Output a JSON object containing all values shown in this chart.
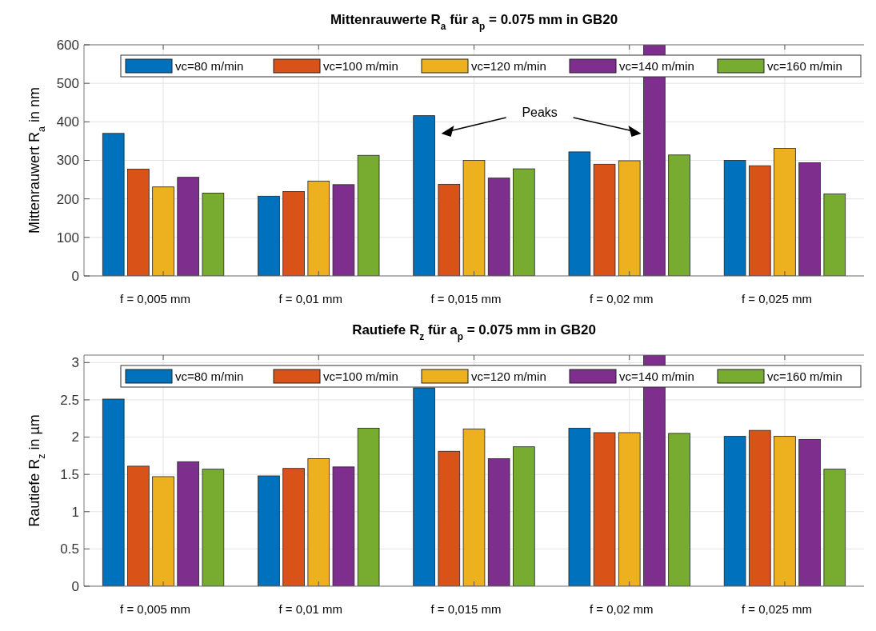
{
  "chart_data": [
    {
      "type": "bar",
      "title": "Mittenrauwerte R$_{a}$ für a$_{p}$ = 0.075 mm in GB20",
      "ylabel": "Mittenrauwert R$_{a}$ in nm",
      "categories": [
        "f = 0,005 mm",
        "f = 0,01 mm",
        "f = 0,015 mm",
        "f = 0,02 mm",
        "f = 0,025 mm"
      ],
      "series": [
        {
          "name": "vc=80 m/min",
          "color": "#0072bd",
          "values": [
            370,
            207,
            416,
            322,
            300
          ]
        },
        {
          "name": "vc=100 m/min",
          "color": "#d95319",
          "values": [
            277,
            219,
            238,
            290,
            286
          ]
        },
        {
          "name": "vc=120 m/min",
          "color": "#edb120",
          "values": [
            231,
            246,
            300,
            299,
            331
          ]
        },
        {
          "name": "vc=140 m/min",
          "color": "#7e2f8e",
          "values": [
            256,
            237,
            254,
            600,
            294
          ]
        },
        {
          "name": "vc=160 m/min",
          "color": "#77ac30",
          "values": [
            215,
            313,
            278,
            314,
            213
          ]
        }
      ],
      "ylim": [
        0,
        600
      ],
      "yticks": [
        0,
        100,
        200,
        300,
        400,
        500,
        600
      ],
      "grid": true,
      "legend": "top",
      "annotations": [
        "Peaks"
      ]
    },
    {
      "type": "bar",
      "title": "Rautiefe R$_{z}$ für a$_{p}$ = 0.075 mm in GB20",
      "ylabel": "Rautiefe R$_{z}$ in µm",
      "categories": [
        "f = 0,005 mm",
        "f = 0,01 mm",
        "f = 0,015 mm",
        "f = 0,02 mm",
        "f = 0,025 mm"
      ],
      "series": [
        {
          "name": "vc=80 m/min",
          "color": "#0072bd",
          "values": [
            2.51,
            1.48,
            2.66,
            2.12,
            2.01
          ]
        },
        {
          "name": "vc=100 m/min",
          "color": "#d95319",
          "values": [
            1.61,
            1.58,
            1.81,
            2.06,
            2.09
          ]
        },
        {
          "name": "vc=120 m/min",
          "color": "#edb120",
          "values": [
            1.47,
            1.71,
            2.11,
            2.06,
            2.01
          ]
        },
        {
          "name": "vc=140 m/min",
          "color": "#7e2f8e",
          "values": [
            1.67,
            1.6,
            1.71,
            3.1,
            1.97
          ]
        },
        {
          "name": "vc=160 m/min",
          "color": "#77ac30",
          "values": [
            1.57,
            2.12,
            1.87,
            2.05,
            1.57
          ]
        }
      ],
      "ylim": [
        0,
        3.1
      ],
      "yticks": [
        0,
        0.5,
        1,
        1.5,
        2,
        2.5,
        3
      ],
      "grid": true,
      "legend": "top"
    }
  ]
}
